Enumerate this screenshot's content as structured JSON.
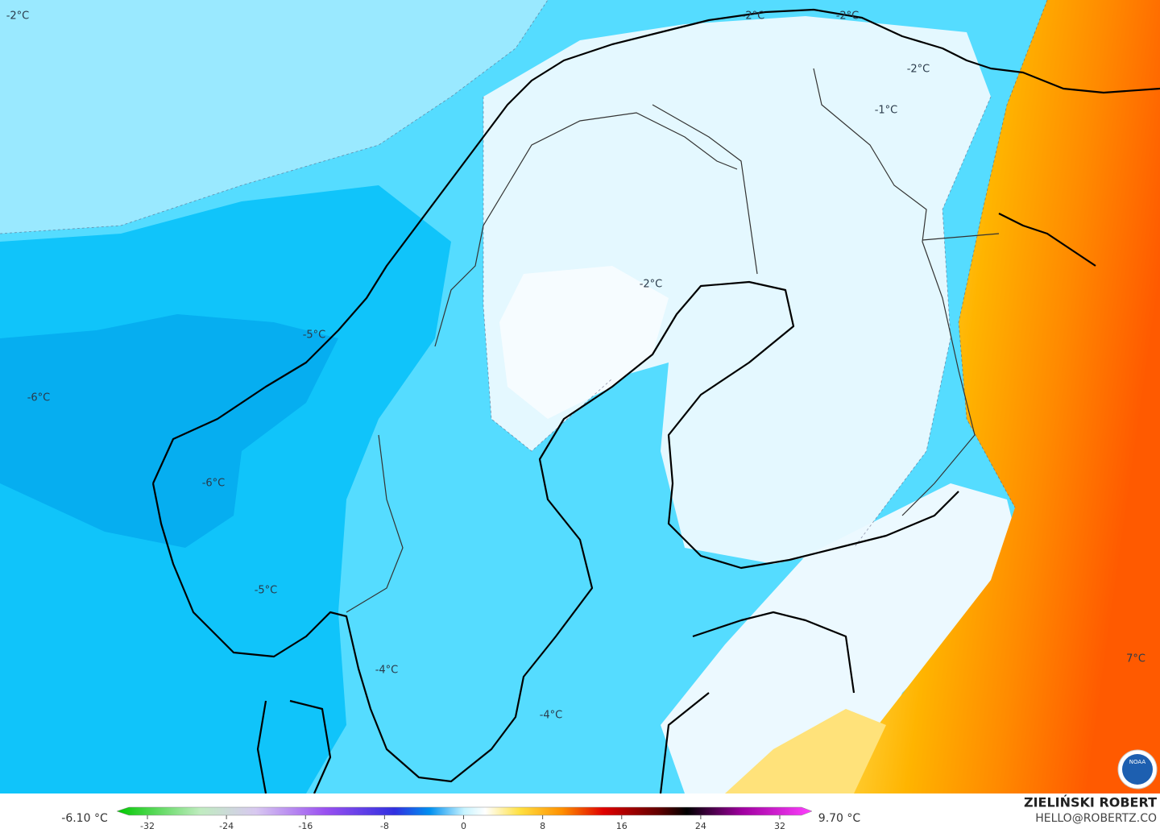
{
  "map_labels": [
    "-2°C",
    "-2°C",
    "-2°C",
    "-2°C",
    "-1°C",
    "-2°C",
    "-5°C",
    "-6°C",
    "-6°C",
    "-5°C",
    "-4°C",
    "-4°C",
    "7°C"
  ],
  "colorbar": {
    "min_label": "-6.10 °C",
    "max_label": "9.70 °C",
    "ticks": [
      -32,
      -24,
      -16,
      -8,
      0,
      8,
      16,
      24,
      32
    ]
  },
  "credits": {
    "author": "ZIELIŃSKI ROBERT",
    "email": "HELLO@ROBERTZ.CO",
    "logo": "NOAA"
  }
}
